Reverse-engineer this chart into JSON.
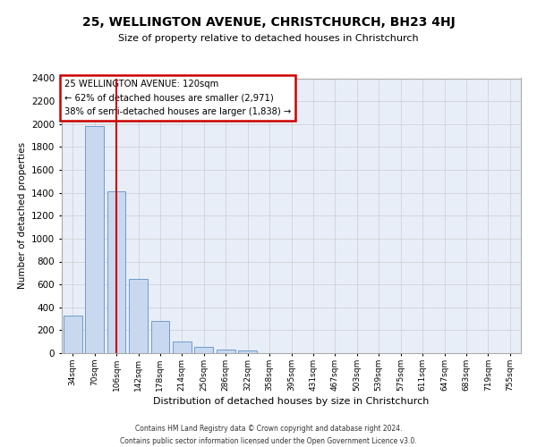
{
  "title1": "25, WELLINGTON AVENUE, CHRISTCHURCH, BH23 4HJ",
  "title2": "Size of property relative to detached houses in Christchurch",
  "xlabel": "Distribution of detached houses by size in Christchurch",
  "ylabel": "Number of detached properties",
  "annotation_line1": "25 WELLINGTON AVENUE: 120sqm",
  "annotation_line2": "← 62% of detached houses are smaller (2,971)",
  "annotation_line3": "38% of semi-detached houses are larger (1,838) →",
  "footer1": "Contains HM Land Registry data © Crown copyright and database right 2024.",
  "footer2": "Contains public sector information licensed under the Open Government Licence v3.0.",
  "bar_color": "#c8d8ee",
  "bar_edge_color": "#6090c8",
  "grid_color": "#cccccc",
  "plot_bg_color": "#e8eef8",
  "annotation_box_edge": "#cc0000",
  "vline_color": "#cc0000",
  "categories": [
    "34sqm",
    "70sqm",
    "106sqm",
    "142sqm",
    "178sqm",
    "214sqm",
    "250sqm",
    "286sqm",
    "322sqm",
    "358sqm",
    "395sqm",
    "431sqm",
    "467sqm",
    "503sqm",
    "539sqm",
    "575sqm",
    "611sqm",
    "647sqm",
    "683sqm",
    "719sqm",
    "755sqm"
  ],
  "values": [
    330,
    1980,
    1410,
    650,
    280,
    105,
    55,
    35,
    25,
    0,
    0,
    0,
    0,
    0,
    0,
    0,
    0,
    0,
    0,
    0,
    0
  ],
  "vline_x": 2.0,
  "ylim": [
    0,
    2400
  ],
  "yticks": [
    0,
    200,
    400,
    600,
    800,
    1000,
    1200,
    1400,
    1600,
    1800,
    2000,
    2200,
    2400
  ]
}
